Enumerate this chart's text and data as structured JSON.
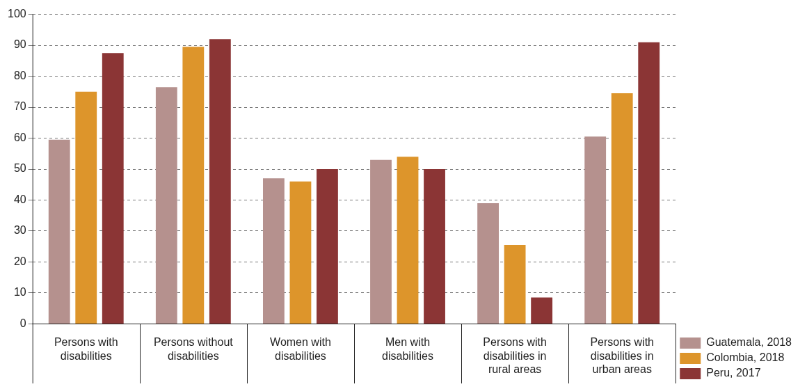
{
  "chart_data": {
    "type": "bar",
    "categories": [
      "Persons with disabilities",
      "Persons without disabilities",
      "Women with disabilities",
      "Men with disabilities",
      "Persons with disabilities in rural areas",
      "Persons with disabilities in urban areas"
    ],
    "series": [
      {
        "name": "Guatemala, 2018",
        "color": "#b5918e",
        "values": [
          59.5,
          76.5,
          47,
          53,
          39,
          60.5
        ]
      },
      {
        "name": "Colombia, 2018",
        "color": "#dd952b",
        "values": [
          75,
          89.5,
          46,
          54,
          25.5,
          74.5
        ]
      },
      {
        "name": "Peru, 2017",
        "color": "#8b3535",
        "values": [
          87.5,
          92,
          50,
          50,
          8.5,
          91
        ]
      }
    ],
    "ylim": [
      0,
      100
    ],
    "yticks": [
      0,
      10,
      20,
      30,
      40,
      50,
      60,
      70,
      80,
      90,
      100
    ],
    "grid": "y",
    "legend": "bottom right"
  }
}
